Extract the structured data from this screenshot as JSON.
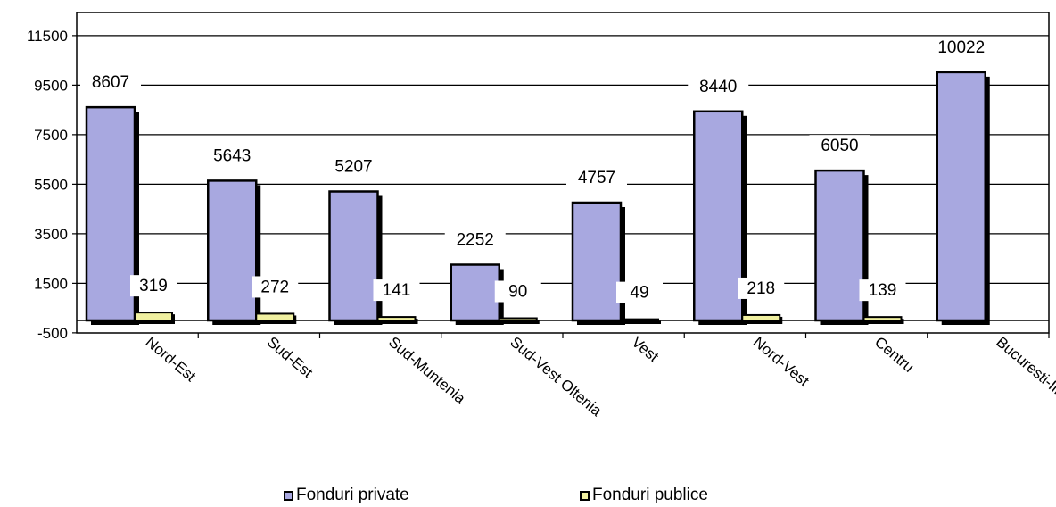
{
  "chart_data": {
    "type": "bar",
    "categories": [
      "Nord-Est",
      "Sud-Est",
      "Sud-Muntenia",
      "Sud-Vest Oltenia",
      "Vest",
      "Nord-Vest",
      "Centru",
      "Bucuresti-Ilfov"
    ],
    "series": [
      {
        "name": "Fonduri private",
        "values": [
          8607,
          5643,
          5207,
          2252,
          4757,
          8440,
          6050,
          10022
        ],
        "color": "#a8a8e0"
      },
      {
        "name": "Fonduri publice",
        "values": [
          319,
          272,
          141,
          90,
          49,
          218,
          139,
          0
        ],
        "color": "#f0f0a0"
      }
    ],
    "y_ticks": [
      "11500",
      "9500",
      "7500",
      "5500",
      "3500",
      "1500",
      "-500"
    ],
    "ylim": [
      -500,
      12500
    ],
    "data_labels": {
      "private": [
        "8607",
        "5643",
        "5207",
        "2252",
        "4757",
        "8440",
        "6050",
        "10022"
      ],
      "public": [
        "319",
        "272",
        "141",
        "90",
        "49",
        "218",
        "139"
      ]
    },
    "title": "",
    "xlabel": "",
    "ylabel": "",
    "grid": true,
    "legend_position": "bottom"
  }
}
